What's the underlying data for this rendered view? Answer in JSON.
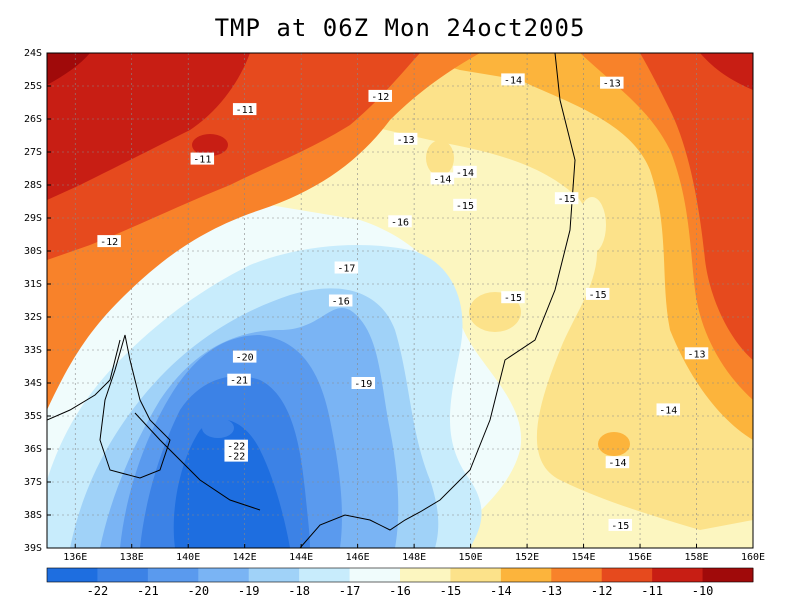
{
  "title": "TMP at 06Z Mon 24oct2005",
  "map": {
    "lat_ticks": [
      "24S",
      "25S",
      "26S",
      "27S",
      "28S",
      "29S",
      "30S",
      "31S",
      "32S",
      "33S",
      "34S",
      "35S",
      "36S",
      "37S",
      "38S",
      "39S"
    ],
    "lon_ticks": [
      "136E",
      "138E",
      "140E",
      "142E",
      "144E",
      "146E",
      "148E",
      "150E",
      "152E",
      "154E",
      "156E",
      "158E",
      "160E"
    ],
    "lat_range": [
      -39,
      -24
    ],
    "lon_range": [
      135,
      160
    ],
    "contour_labels": [
      {
        "text": "-11",
        "lon": 142.0,
        "lat": -25.7
      },
      {
        "text": "-11",
        "lon": 140.5,
        "lat": -27.2
      },
      {
        "text": "-12",
        "lon": 146.8,
        "lat": -25.3
      },
      {
        "text": "-12",
        "lon": 137.2,
        "lat": -29.7
      },
      {
        "text": "-13",
        "lon": 147.7,
        "lat": -26.6
      },
      {
        "text": "-13",
        "lon": 155.0,
        "lat": -24.9
      },
      {
        "text": "-13",
        "lon": 158.0,
        "lat": -33.1
      },
      {
        "text": "-14",
        "lon": 151.5,
        "lat": -24.8
      },
      {
        "text": "-14",
        "lon": 149.0,
        "lat": -27.8
      },
      {
        "text": "-14",
        "lon": 149.8,
        "lat": -27.6
      },
      {
        "text": "-14",
        "lon": 157.0,
        "lat": -34.8
      },
      {
        "text": "-14",
        "lon": 155.2,
        "lat": -36.4
      },
      {
        "text": "-15",
        "lon": 149.8,
        "lat": -28.6
      },
      {
        "text": "-15",
        "lon": 153.4,
        "lat": -28.4
      },
      {
        "text": "-15",
        "lon": 151.5,
        "lat": -31.4
      },
      {
        "text": "-15",
        "lon": 154.5,
        "lat": -31.3
      },
      {
        "text": "-15",
        "lon": 155.3,
        "lat": -38.3
      },
      {
        "text": "-16",
        "lon": 147.5,
        "lat": -29.1
      },
      {
        "text": "-16",
        "lon": 145.4,
        "lat": -31.5
      },
      {
        "text": "-17",
        "lon": 145.6,
        "lat": -30.5
      },
      {
        "text": "-19",
        "lon": 146.2,
        "lat": -34.0
      },
      {
        "text": "-20",
        "lon": 142.0,
        "lat": -33.2
      },
      {
        "text": "-21",
        "lon": 141.8,
        "lat": -33.9
      },
      {
        "text": "-22",
        "lon": 141.7,
        "lat": -35.9
      },
      {
        "text": "-22",
        "lon": 141.7,
        "lat": -36.2
      }
    ]
  },
  "colorbar": {
    "labels": [
      "-22",
      "-21",
      "-20",
      "-19",
      "-18",
      "-17",
      "-16",
      "-15",
      "-14",
      "-13",
      "-12",
      "-11",
      "-10"
    ],
    "colors": [
      "#1e6ee0",
      "#3c82e6",
      "#5a9aee",
      "#7ab4f4",
      "#a0d2f8",
      "#c8ecfc",
      "#f0fcfc",
      "#fcf6c0",
      "#fce28a",
      "#fcb43c",
      "#f8822a",
      "#e64a1e",
      "#c81e14",
      "#a00a0a"
    ]
  },
  "palette": {
    "p22": "#1e6ee0",
    "p21": "#3c82e6",
    "p20": "#5a9aee",
    "p19": "#7ab4f4",
    "p18": "#a0d2f8",
    "p17": "#c8ecfc",
    "p16": "#f0fcfc",
    "p15": "#fcf6c0",
    "p14": "#fce28a",
    "p13": "#fcb43c",
    "p12": "#f8822a",
    "p11": "#e64a1e",
    "p10": "#c81e14",
    "p09": "#a00a0a"
  }
}
